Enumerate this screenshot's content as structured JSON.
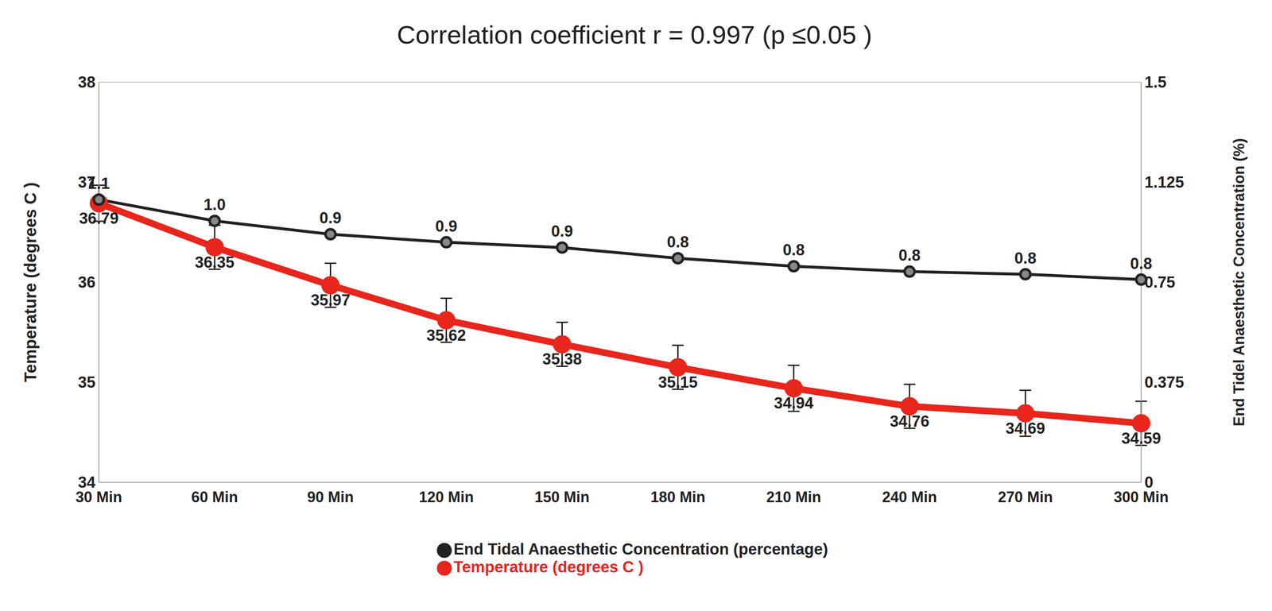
{
  "chart_data": {
    "type": "line",
    "title": "Correlation coefficient r = 0.997 (p ≤0.05 )",
    "categories": [
      "30 Min",
      "60 Min",
      "90 Min",
      "120 Min",
      "150 Min",
      "180 Min",
      "210 Min",
      "240 Min",
      "270 Min",
      "300 Min"
    ],
    "ylabel": "Temperature (degrees C )",
    "y2label": "End Tidel Anaesthetic Concentration (%)",
    "ylim": [
      34,
      38
    ],
    "yticks": [
      34,
      35,
      36,
      37,
      38
    ],
    "y2lim": [
      0,
      1.5
    ],
    "y2ticks": [
      0,
      0.375,
      0.75,
      1.125,
      1.5
    ],
    "grid": true,
    "legend": "bottom",
    "data_labels": true,
    "series": [
      {
        "name": "Temperature (degrees C )",
        "color": "#e8261c",
        "marker": "circle",
        "values": [
          36.79,
          36.35,
          35.97,
          35.62,
          35.38,
          35.15,
          34.94,
          34.76,
          34.69,
          34.59
        ],
        "error": [
          0.18,
          0.22,
          0.22,
          0.22,
          0.22,
          0.22,
          0.23,
          0.22,
          0.23,
          0.22
        ]
      },
      {
        "name": "End Tidal Anaesthetic Concentration (percentage)",
        "color": "#222222",
        "marker": "circle",
        "axis": "y2",
        "values": [
          1.06,
          0.98,
          0.93,
          0.9,
          0.88,
          0.84,
          0.81,
          0.79,
          0.78,
          0.76
        ],
        "value_labels": [
          "1.1",
          "1.0",
          "0.9",
          "0.9",
          "0.9",
          "0.8",
          "0.8",
          "0.8",
          "0.8",
          "0.8"
        ]
      }
    ]
  }
}
